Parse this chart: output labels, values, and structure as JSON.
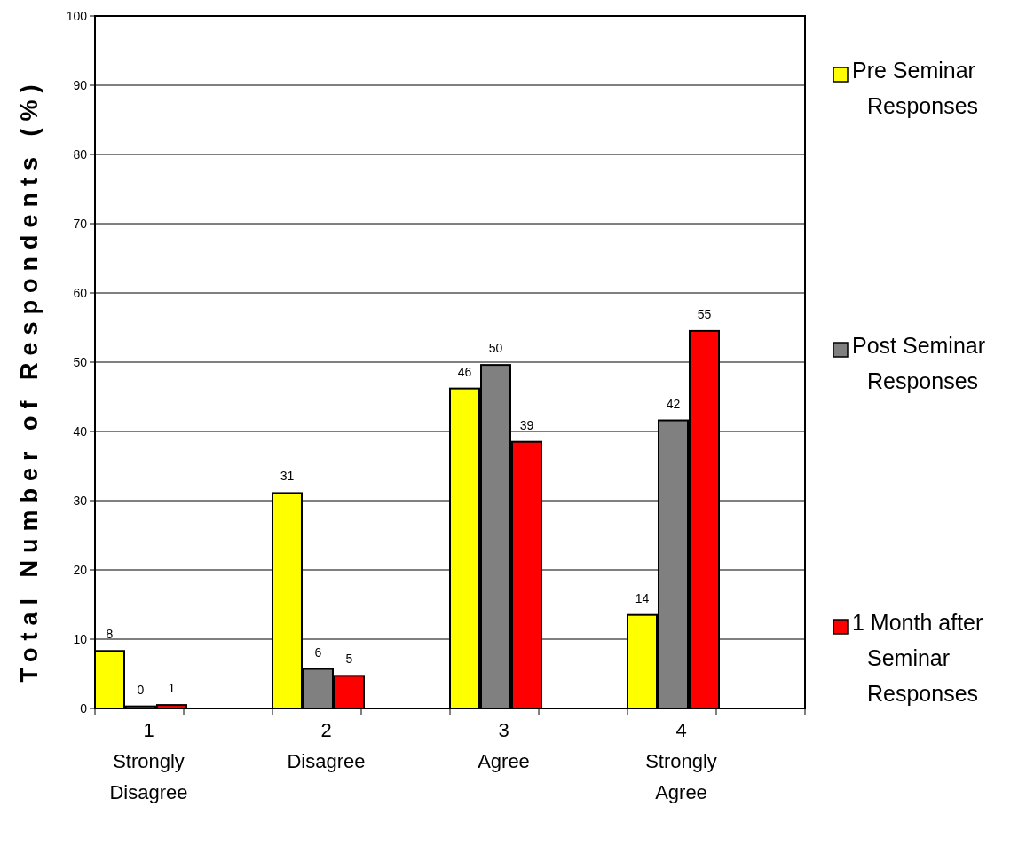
{
  "chart_data": {
    "type": "bar",
    "ylabel": "Total Number of Respondents (%)",
    "categories": [
      "1\nStrongly\nDisagree",
      "2\nDisagree",
      "3\nAgree",
      "4\nStrongly\nAgree"
    ],
    "series": [
      {
        "name": "Pre Seminar\nResponses",
        "color": "#ffff00",
        "values": [
          8.3,
          31.1,
          46.2,
          13.5
        ],
        "value_labels": [
          "8",
          "31",
          "46",
          "14"
        ]
      },
      {
        "name": "Post Seminar\nResponses",
        "color": "#808080",
        "values": [
          0.3,
          5.7,
          49.6,
          41.6
        ],
        "value_labels": [
          "0",
          "6",
          "50",
          "42"
        ]
      },
      {
        "name": "1 Month after\nSeminar\nResponses",
        "color": "#ff0000",
        "values": [
          0.5,
          4.7,
          38.5,
          54.5
        ],
        "value_labels": [
          "1",
          "5",
          "39",
          "55"
        ]
      }
    ],
    "ylim": [
      0,
      100
    ],
    "yticks": [
      0,
      10,
      20,
      30,
      40,
      50,
      60,
      70,
      80,
      90,
      100
    ],
    "grid": "y",
    "legend": "right"
  }
}
